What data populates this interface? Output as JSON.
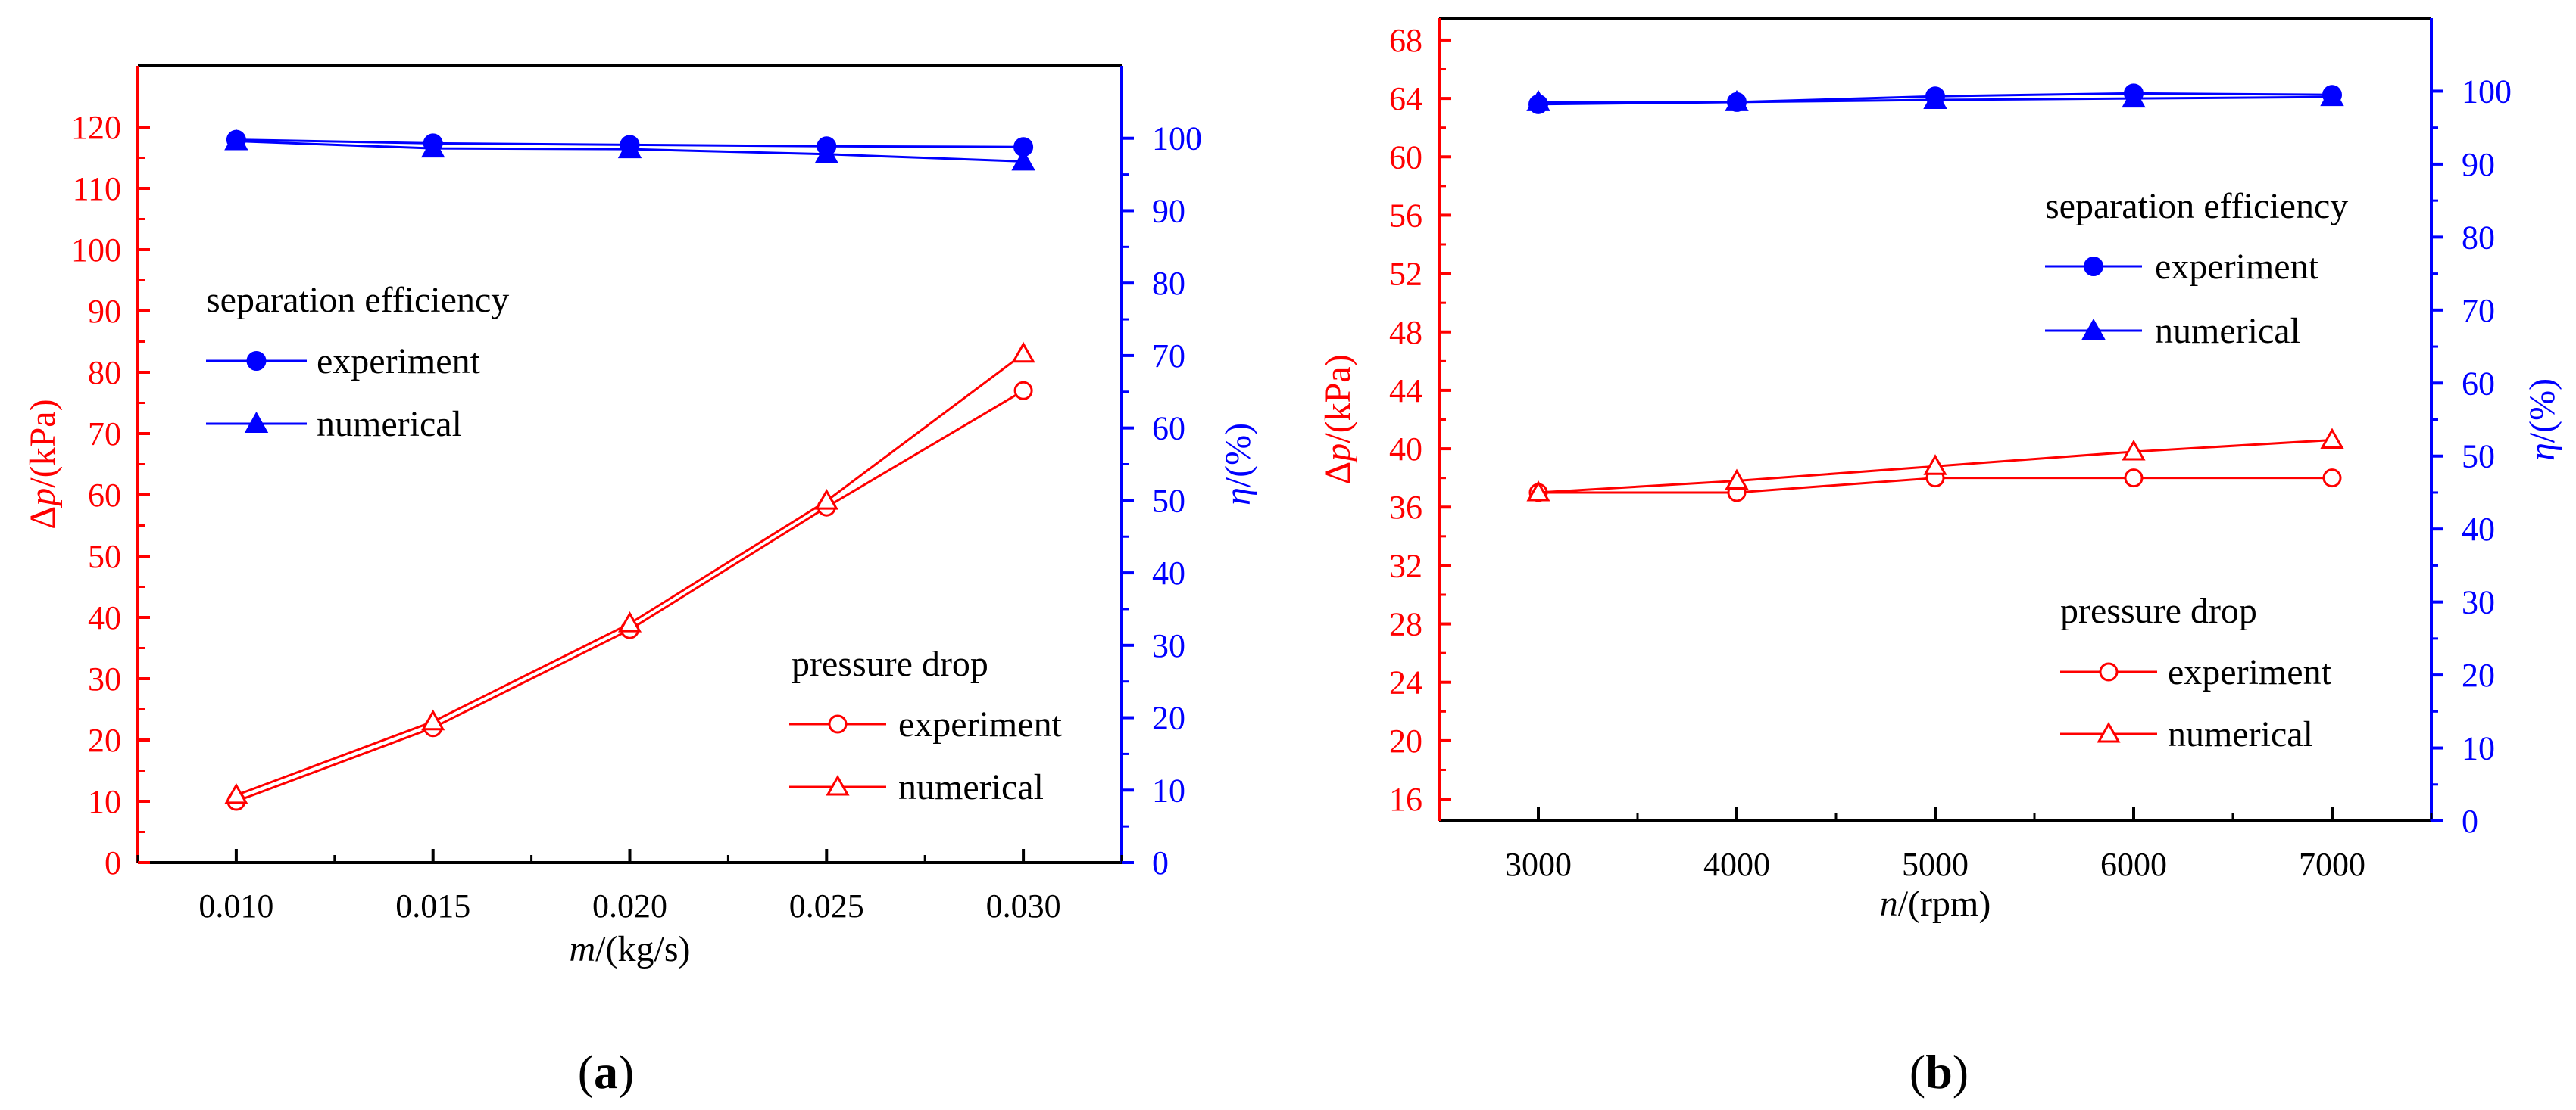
{
  "colors": {
    "pressure": "#ff0000",
    "efficiency": "#0000ff",
    "text": "#000000"
  },
  "chart_data": [
    {
      "type": "line",
      "panel_label": {
        "open": "(",
        "letter": "a",
        "close": ")"
      },
      "xlabel": {
        "var": "m",
        "unit": "/(kg/s)"
      },
      "ylabel_left": {
        "delta": "Δ",
        "var": "p",
        "unit": "/(kPa)"
      },
      "ylabel_right": {
        "var": "η",
        "unit": "/(%)"
      },
      "x": [
        0.01,
        0.015,
        0.02,
        0.025,
        0.03
      ],
      "x_ticks": [
        "0.010",
        "0.015",
        "0.020",
        "0.025",
        "0.030"
      ],
      "xlim": [
        0.0075,
        0.0325
      ],
      "ylim_left": [
        0,
        130
      ],
      "y_ticks_left": [
        "0",
        "10",
        "20",
        "30",
        "40",
        "50",
        "60",
        "70",
        "80",
        "90",
        "100",
        "110",
        "120"
      ],
      "ylim_right": [
        0,
        110
      ],
      "y_ticks_right": [
        "0",
        "10",
        "20",
        "30",
        "40",
        "50",
        "60",
        "70",
        "80",
        "90",
        "100"
      ],
      "series": [
        {
          "name": "experiment",
          "group": "pressure drop",
          "axis": "left",
          "marker": "circle-open",
          "values": [
            10,
            22,
            38,
            58,
            77
          ]
        },
        {
          "name": "numerical",
          "group": "pressure drop",
          "axis": "left",
          "marker": "triangle-open",
          "values": [
            11,
            23,
            39,
            59,
            83
          ]
        },
        {
          "name": "experiment",
          "group": "separation efficiency",
          "axis": "right",
          "marker": "circle-filled",
          "values": [
            99.8,
            99.3,
            99.1,
            98.9,
            98.8
          ]
        },
        {
          "name": "numerical",
          "group": "separation efficiency",
          "axis": "right",
          "marker": "triangle-filled",
          "values": [
            99.6,
            98.6,
            98.5,
            97.8,
            96.8
          ]
        }
      ],
      "legend_groups": [
        {
          "title": "separation efficiency",
          "placement": "middle-left",
          "items": [
            "experiment",
            "numerical"
          ]
        },
        {
          "title": "pressure drop",
          "placement": "bottom-right",
          "items": [
            "experiment",
            "numerical"
          ]
        }
      ]
    },
    {
      "type": "line",
      "panel_label": {
        "open": "(",
        "letter": "b",
        "close": ")"
      },
      "xlabel": {
        "var": "n",
        "unit": "/(rpm)"
      },
      "ylabel_left": {
        "delta": "Δ",
        "var": "p",
        "unit": "/(kPa)"
      },
      "ylabel_right": {
        "var": "η",
        "unit": "/(%)"
      },
      "x": [
        3000,
        4000,
        5000,
        6000,
        7000
      ],
      "x_ticks": [
        "3000",
        "4000",
        "5000",
        "6000",
        "7000"
      ],
      "xlim": [
        2500,
        7500
      ],
      "ylim_left": [
        14.5,
        69.5
      ],
      "y_ticks_left": [
        "16",
        "20",
        "24",
        "28",
        "32",
        "36",
        "40",
        "44",
        "48",
        "52",
        "56",
        "60",
        "64",
        "68"
      ],
      "ylim_right": [
        0,
        110
      ],
      "y_ticks_right": [
        "0",
        "10",
        "20",
        "30",
        "40",
        "50",
        "60",
        "70",
        "80",
        "90",
        "100"
      ],
      "series": [
        {
          "name": "experiment",
          "group": "pressure drop",
          "axis": "left",
          "marker": "circle-open",
          "values": [
            37,
            37,
            38,
            38,
            38
          ]
        },
        {
          "name": "numerical",
          "group": "pressure drop",
          "axis": "left",
          "marker": "triangle-open",
          "values": [
            37,
            37.8,
            38.8,
            39.8,
            40.6
          ]
        },
        {
          "name": "experiment",
          "group": "separation efficiency",
          "axis": "right",
          "marker": "circle-filled",
          "values": [
            98.2,
            98.5,
            99.3,
            99.7,
            99.5
          ]
        },
        {
          "name": "numerical",
          "group": "separation efficiency",
          "axis": "right",
          "marker": "triangle-filled",
          "values": [
            98.5,
            98.5,
            98.8,
            99.0,
            99.2
          ]
        }
      ],
      "legend_groups": [
        {
          "title": "separation efficiency",
          "placement": "upper-right",
          "items": [
            "experiment",
            "numerical"
          ]
        },
        {
          "title": "pressure drop",
          "placement": "lower-right",
          "items": [
            "experiment",
            "numerical"
          ]
        }
      ]
    }
  ]
}
